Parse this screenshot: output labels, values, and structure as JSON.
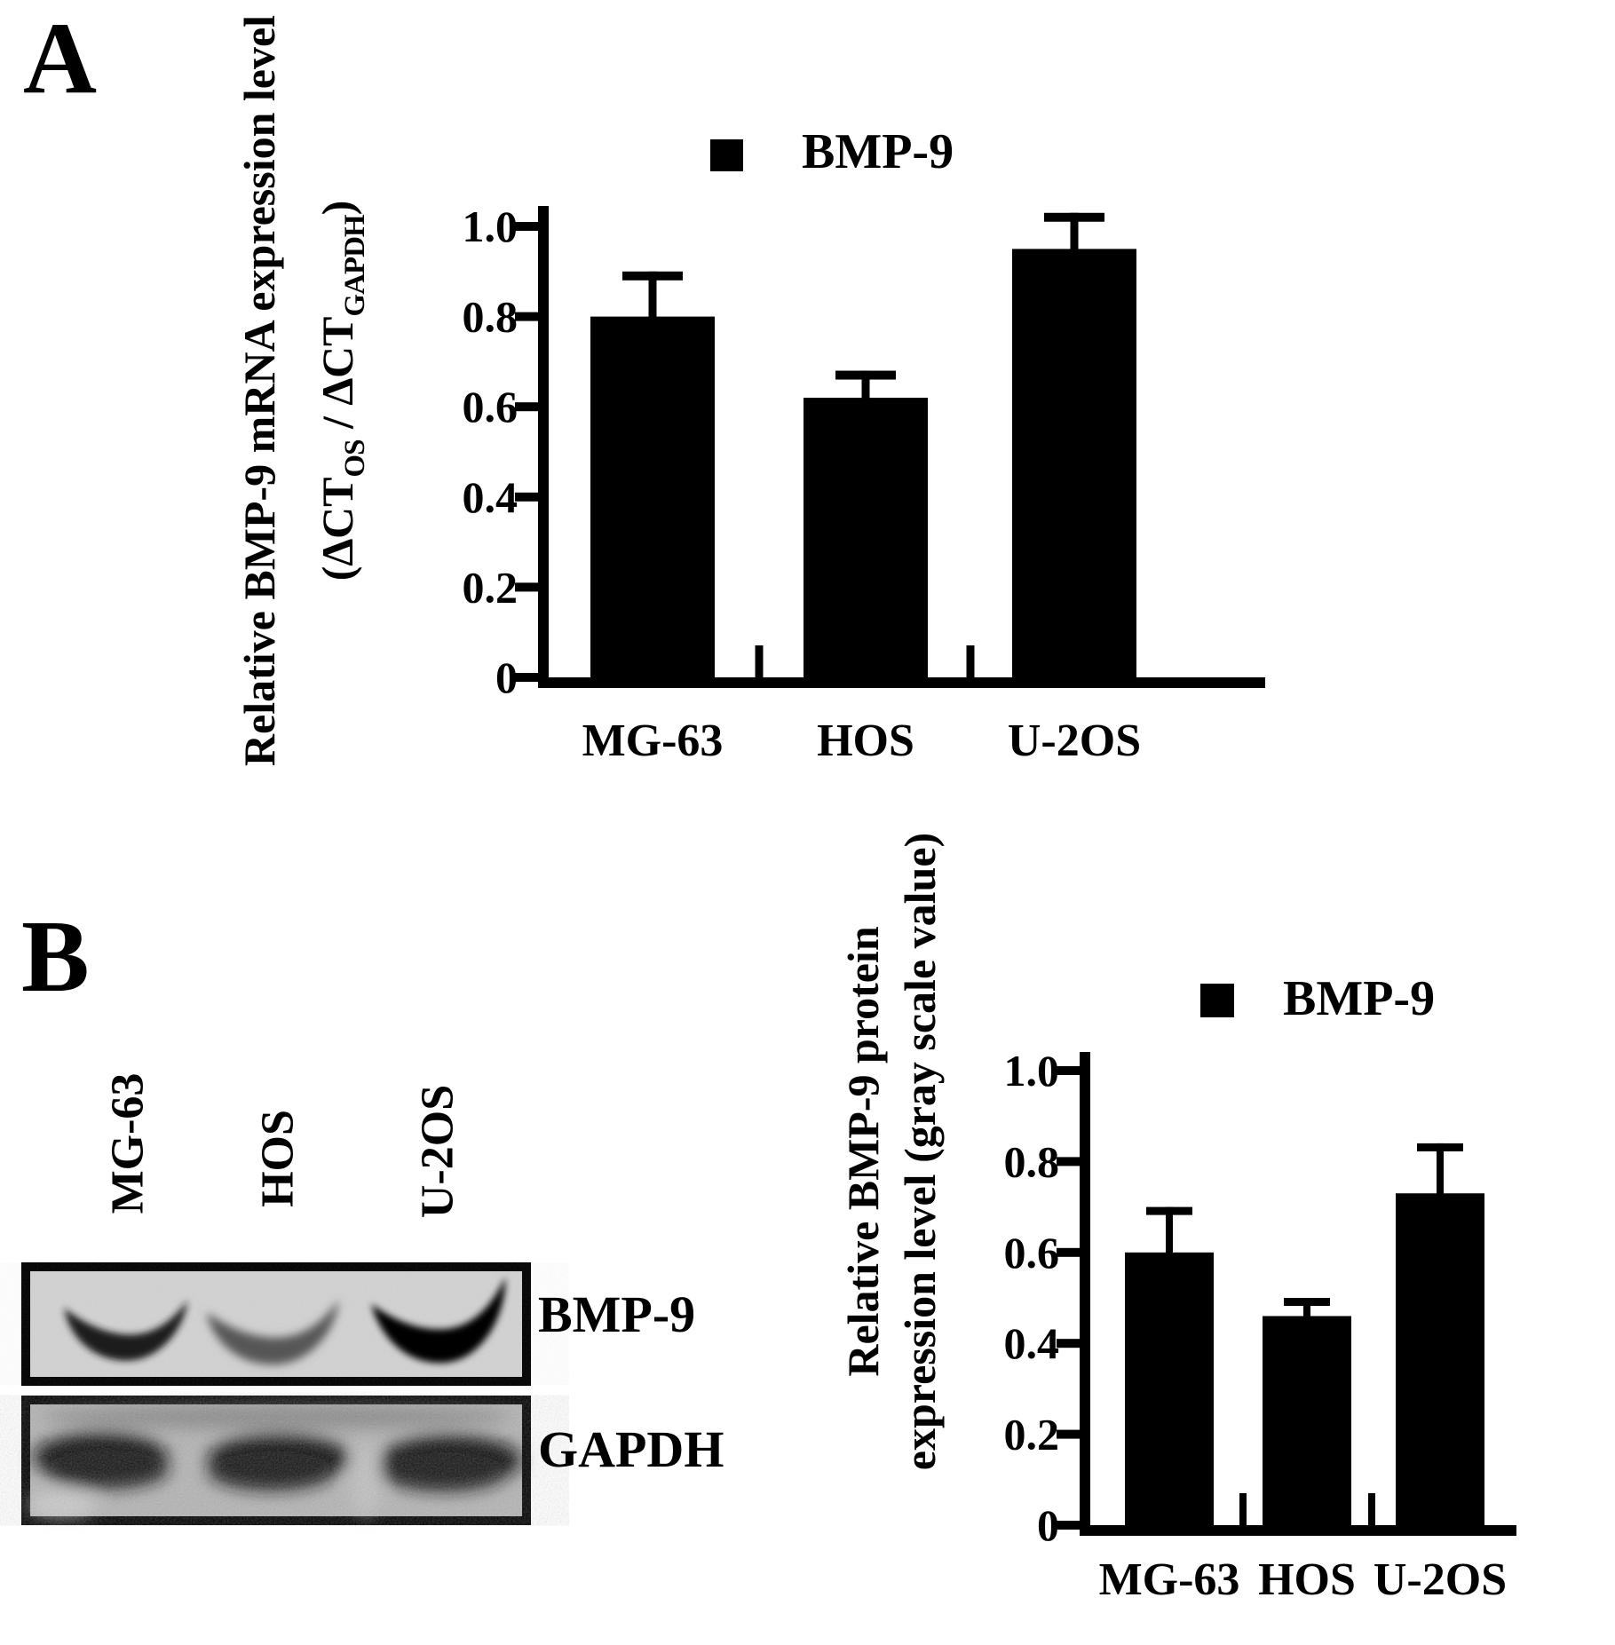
{
  "panels": {
    "a": {
      "label": "A",
      "ylabel_line1": "Relative BMP-9 mRNA expression level",
      "ylabel2": {
        "open": "(∆CT",
        "sub_os": "OS",
        "mid": " / ∆CT",
        "sub_gapdh": "GAPDH",
        "close": ")"
      },
      "legend": {
        "label": "BMP-9",
        "swatch_color": "#000000"
      }
    },
    "b": {
      "label": "B",
      "ylabel_line1": "Relative BMP-9 protein",
      "ylabel_line2": "expression level (gray scale value)",
      "legend": {
        "label": "BMP-9",
        "swatch_color": "#000000"
      },
      "blot": {
        "lanes": [
          "MG-63",
          "HOS",
          "U-2OS"
        ],
        "row_labels": [
          "BMP-9",
          "GAPDH"
        ]
      }
    }
  },
  "chart_data": [
    {
      "type": "bar",
      "title": "",
      "categories": [
        "MG-63",
        "HOS",
        "U-2OS"
      ],
      "values": [
        0.8,
        0.62,
        0.95
      ],
      "errors": [
        0.1,
        0.06,
        0.08
      ],
      "legend": [
        "BMP-9"
      ],
      "legend_position": "top",
      "xlabel": "",
      "ylabel": "Relative BMP-9 mRNA expression level (∆CT OS / ∆CT GAPDH)",
      "ylim": [
        0,
        1.05
      ],
      "yticks": [
        0,
        0.2,
        0.4,
        0.6,
        0.8,
        1.0
      ],
      "ytick_labels": [
        "0",
        "0.2",
        "0.4",
        "0.6",
        "0.8",
        "1.0"
      ],
      "grid": false,
      "bar_color": "#000000"
    },
    {
      "type": "bar",
      "title": "",
      "categories": [
        "MG-63",
        "HOS",
        "U-2OS"
      ],
      "values": [
        0.6,
        0.46,
        0.73
      ],
      "errors": [
        0.1,
        0.04,
        0.11
      ],
      "legend": [
        "BMP-9"
      ],
      "legend_position": "top",
      "xlabel": "",
      "ylabel": "Relative BMP-9 protein expression level (gray scale value)",
      "ylim": [
        0,
        1.05
      ],
      "yticks": [
        0,
        0.2,
        0.4,
        0.6,
        0.8,
        1.0
      ],
      "ytick_labels": [
        "0",
        "0.2",
        "0.4",
        "0.6",
        "0.8",
        "1.0"
      ],
      "grid": false,
      "bar_color": "#000000"
    }
  ]
}
